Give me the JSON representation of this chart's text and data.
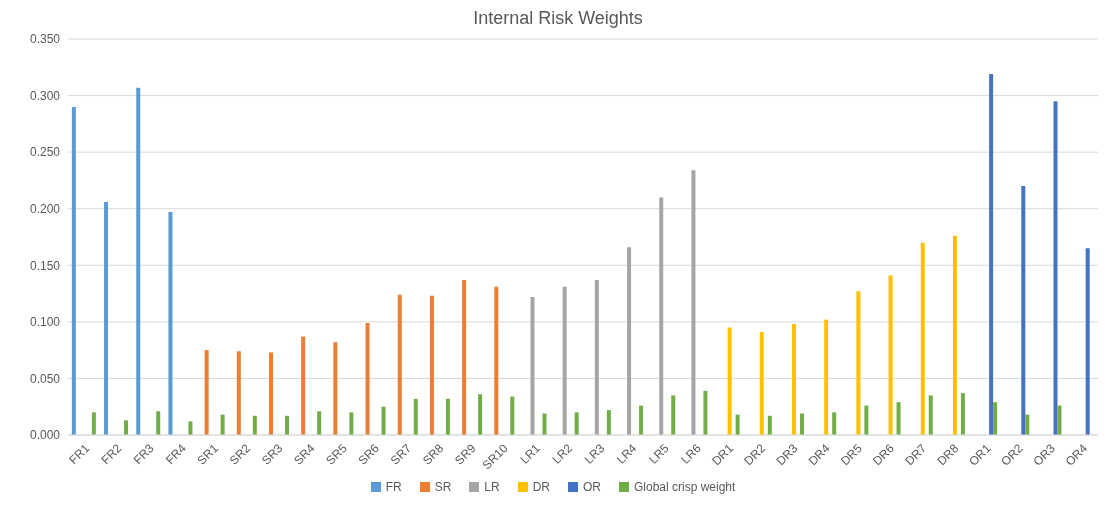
{
  "chart_data": {
    "type": "bar",
    "title": "Internal Risk Weights",
    "categories": [
      "FR1",
      "FR2",
      "FR3",
      "FR4",
      "SR1",
      "SR2",
      "SR3",
      "SR4",
      "SR5",
      "SR6",
      "SR7",
      "SR8",
      "SR9",
      "SR10",
      "LR1",
      "LR2",
      "LR3",
      "LR4",
      "LR5",
      "LR6",
      "DR1",
      "DR2",
      "DR3",
      "DR4",
      "DR5",
      "DR6",
      "DR7",
      "DR8",
      "OR1",
      "OR2",
      "OR3",
      "OR4"
    ],
    "series": [
      {
        "name": "FR",
        "color": "#5b9bd5",
        "values": [
          0.29,
          0.206,
          0.307,
          0.197,
          null,
          null,
          null,
          null,
          null,
          null,
          null,
          null,
          null,
          null,
          null,
          null,
          null,
          null,
          null,
          null,
          null,
          null,
          null,
          null,
          null,
          null,
          null,
          null,
          null,
          null,
          null,
          null
        ]
      },
      {
        "name": "SR",
        "color": "#ed7d31",
        "values": [
          null,
          null,
          null,
          null,
          0.075,
          0.074,
          0.073,
          0.087,
          0.082,
          0.099,
          0.124,
          0.123,
          0.137,
          0.131,
          null,
          null,
          null,
          null,
          null,
          null,
          null,
          null,
          null,
          null,
          null,
          null,
          null,
          null,
          null,
          null,
          null,
          null
        ]
      },
      {
        "name": "LR",
        "color": "#a5a5a5",
        "values": [
          null,
          null,
          null,
          null,
          null,
          null,
          null,
          null,
          null,
          null,
          null,
          null,
          null,
          null,
          0.122,
          0.131,
          0.137,
          0.166,
          0.21,
          0.234,
          null,
          null,
          null,
          null,
          null,
          null,
          null,
          null,
          null,
          null,
          null,
          null
        ]
      },
      {
        "name": "DR",
        "color": "#ffc000",
        "values": [
          null,
          null,
          null,
          null,
          null,
          null,
          null,
          null,
          null,
          null,
          null,
          null,
          null,
          null,
          null,
          null,
          null,
          null,
          null,
          null,
          0.095,
          0.091,
          0.098,
          0.102,
          0.127,
          0.141,
          0.17,
          0.176,
          null,
          null,
          null,
          null
        ]
      },
      {
        "name": "OR",
        "color": "#4472c4",
        "values": [
          null,
          null,
          null,
          null,
          null,
          null,
          null,
          null,
          null,
          null,
          null,
          null,
          null,
          null,
          null,
          null,
          null,
          null,
          null,
          null,
          null,
          null,
          null,
          null,
          null,
          null,
          null,
          null,
          0.319,
          0.22,
          0.295,
          0.165
        ]
      },
      {
        "name": "Global crisp weight",
        "color": "#70ad47",
        "values": [
          0.02,
          0.013,
          0.021,
          0.012,
          0.018,
          0.017,
          0.017,
          0.021,
          0.02,
          0.025,
          0.032,
          0.032,
          0.036,
          0.034,
          0.019,
          0.02,
          0.022,
          0.026,
          0.035,
          0.039,
          0.018,
          0.017,
          0.019,
          0.02,
          0.026,
          0.029,
          0.035,
          0.037,
          0.029,
          0.018,
          0.026,
          null
        ]
      }
    ],
    "ylim": [
      0,
      0.35
    ],
    "yticks": [
      {
        "value": 0,
        "label": "0.000"
      },
      {
        "value": 0.05,
        "label": "0.050"
      },
      {
        "value": 0.1,
        "label": "0.100"
      },
      {
        "value": 0.15,
        "label": "0.150"
      },
      {
        "value": 0.2,
        "label": "0.200"
      },
      {
        "value": 0.25,
        "label": "0.250"
      },
      {
        "value": 0.3,
        "label": "0.300"
      },
      {
        "value": 0.35,
        "label": "0.350"
      }
    ],
    "grid": "y",
    "legend": "bottom"
  }
}
